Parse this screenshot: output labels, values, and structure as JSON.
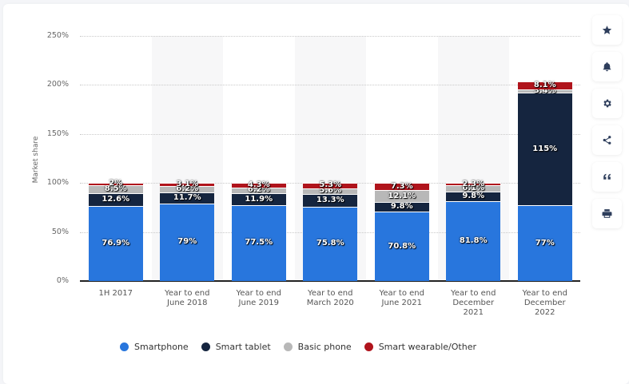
{
  "chart_data": {
    "type": "bar",
    "stacked": true,
    "title": "",
    "xlabel": "",
    "ylabel": "Market share",
    "ylim": [
      0,
      250
    ],
    "yticks": [
      "0%",
      "50%",
      "100%",
      "150%",
      "200%",
      "250%"
    ],
    "grid": true,
    "legend_position": "bottom",
    "categories": [
      "1H 2017",
      "Year to end June 2018",
      "Year to end June 2019",
      "Year to end March 2020",
      "Year to end June 2021",
      "Year to end December 2021",
      "Year to end December 2022"
    ],
    "series": [
      {
        "name": "Smartphone",
        "color": "#2876dd",
        "values": [
          76.9,
          79,
          77.5,
          75.8,
          70.8,
          81.8,
          77
        ]
      },
      {
        "name": "Smart tablet",
        "color": "#15253f",
        "values": [
          12.6,
          11.7,
          11.9,
          13.3,
          9.8,
          9.8,
          115
        ]
      },
      {
        "name": "Basic phone",
        "color": "#b8b8b8",
        "values": [
          8.5,
          6.2,
          6.2,
          5.6,
          12.1,
          6.1,
          3.4
        ]
      },
      {
        "name": "Smart wearable/Other",
        "color": "#b0141c",
        "values": [
          2,
          3.1,
          4.3,
          5.3,
          7.3,
          2.3,
          8.1
        ]
      }
    ],
    "data_labels": [
      [
        "76.9%",
        "12.6%",
        "8.5%",
        "2%"
      ],
      [
        "79%",
        "11.7%",
        "6.2%",
        "3.1%"
      ],
      [
        "77.5%",
        "11.9%",
        "6.2%",
        "4.3%"
      ],
      [
        "75.8%",
        "13.3%",
        "5.6%",
        "5.3%"
      ],
      [
        "70.8%",
        "9.8%",
        "12.1%",
        "7.3%"
      ],
      [
        "81.8%",
        "9.8%",
        "6.1%",
        "2.3%"
      ],
      [
        "77%",
        "115%",
        "3.4%",
        "8.1%"
      ]
    ]
  },
  "axis": {
    "ylabel": "Market share",
    "yticks": [
      "0%",
      "50%",
      "100%",
      "150%",
      "200%",
      "250%"
    ],
    "xlabels": [
      [
        "1H 2017"
      ],
      [
        "Year to end",
        "June 2018"
      ],
      [
        "Year to end",
        "June 2019"
      ],
      [
        "Year to end",
        "March 2020"
      ],
      [
        "Year to end",
        "June 2021"
      ],
      [
        "Year to end",
        "December",
        "2021"
      ],
      [
        "Year to end",
        "December",
        "2022"
      ]
    ]
  },
  "legend": [
    {
      "label": "Smartphone",
      "color": "#2876dd"
    },
    {
      "label": "Smart tablet",
      "color": "#15253f"
    },
    {
      "label": "Basic phone",
      "color": "#b8b8b8"
    },
    {
      "label": "Smart wearable/Other",
      "color": "#b0141c"
    }
  ],
  "toolbar": [
    {
      "name": "favorite",
      "icon": "star-icon"
    },
    {
      "name": "notification",
      "icon": "bell-icon"
    },
    {
      "name": "settings",
      "icon": "gear-icon"
    },
    {
      "name": "share",
      "icon": "share-icon"
    },
    {
      "name": "cite",
      "icon": "quote-icon"
    },
    {
      "name": "print",
      "icon": "print-icon"
    }
  ]
}
